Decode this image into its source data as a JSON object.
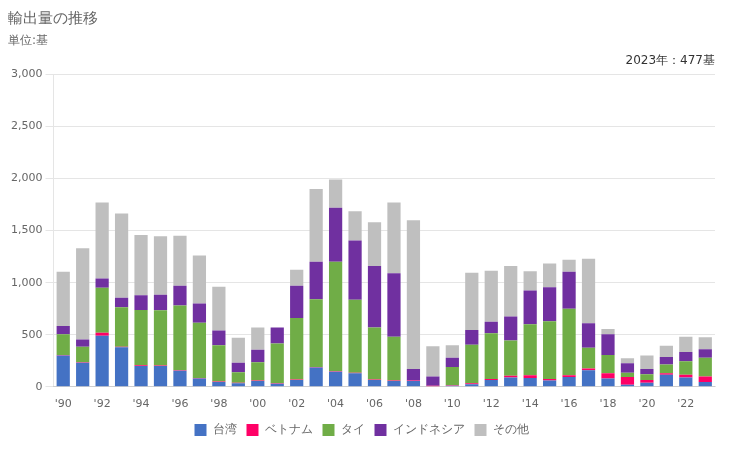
{
  "chart_data": {
    "type": "bar",
    "stacked": true,
    "title": "輸出量の推移",
    "subtitle": "単位:基",
    "annotations": [
      "2023年：477基"
    ],
    "categories": [
      "'90",
      null,
      "'92",
      null,
      "'94",
      null,
      "'96",
      null,
      "'98",
      null,
      "'00",
      null,
      "'02",
      null,
      "'04",
      null,
      "'06",
      null,
      "'08",
      null,
      "'10",
      null,
      "'12",
      null,
      "'14",
      null,
      "'16",
      null,
      "'18",
      null,
      "'20",
      null,
      "'22",
      null
    ],
    "series": [
      {
        "name": "台湾",
        "color": "#4472c4",
        "values": [
          300,
          230,
          490,
          380,
          200,
          200,
          155,
          80,
          45,
          35,
          55,
          30,
          65,
          185,
          145,
          130,
          65,
          55,
          55,
          5,
          10,
          25,
          65,
          90,
          85,
          60,
          95,
          160,
          80,
          20,
          40,
          115,
          90,
          45
        ]
      },
      {
        "name": "ベトナム",
        "color": "#ff0066",
        "values": [
          5,
          5,
          30,
          5,
          8,
          5,
          5,
          5,
          5,
          5,
          5,
          5,
          5,
          5,
          5,
          5,
          5,
          5,
          5,
          5,
          5,
          10,
          10,
          15,
          25,
          15,
          15,
          15,
          50,
          75,
          25,
          15,
          25,
          55
        ]
      },
      {
        "name": "タイ",
        "color": "#70ad47",
        "values": [
          200,
          150,
          430,
          380,
          530,
          530,
          620,
          530,
          350,
          100,
          175,
          380,
          590,
          650,
          1050,
          700,
          500,
          420,
          0,
          0,
          175,
          370,
          440,
          340,
          490,
          555,
          640,
          200,
          175,
          40,
          55,
          85,
          130,
          180
        ]
      },
      {
        "name": "インドネシア",
        "color": "#7030a0",
        "values": [
          80,
          70,
          90,
          90,
          140,
          150,
          190,
          185,
          140,
          90,
          120,
          155,
          310,
          360,
          520,
          570,
          590,
          610,
          110,
          90,
          90,
          140,
          110,
          230,
          325,
          325,
          355,
          235,
          200,
          90,
          50,
          70,
          90,
          80
        ]
      },
      {
        "name": "その他",
        "color": "#bfbfbf",
        "values": [
          520,
          875,
          730,
          810,
          580,
          560,
          480,
          460,
          420,
          240,
          215,
          0,
          155,
          700,
          270,
          280,
          420,
          680,
          1430,
          290,
          120,
          550,
          490,
          485,
          185,
          230,
          115,
          620,
          50,
          50,
          130,
          110,
          145,
          117
        ]
      }
    ],
    "ylim": [
      0,
      3000
    ],
    "yticks": [
      0,
      500,
      {
        "value": 1000,
        "label": "1,000"
      },
      {
        "value": 1500,
        "label": "1,500"
      },
      {
        "value": 2000,
        "label": "2,000"
      },
      {
        "value": 2500,
        "label": "2,500"
      },
      {
        "value": 3000,
        "label": "3,000"
      }
    ],
    "grid": true,
    "legend": "bottom"
  }
}
